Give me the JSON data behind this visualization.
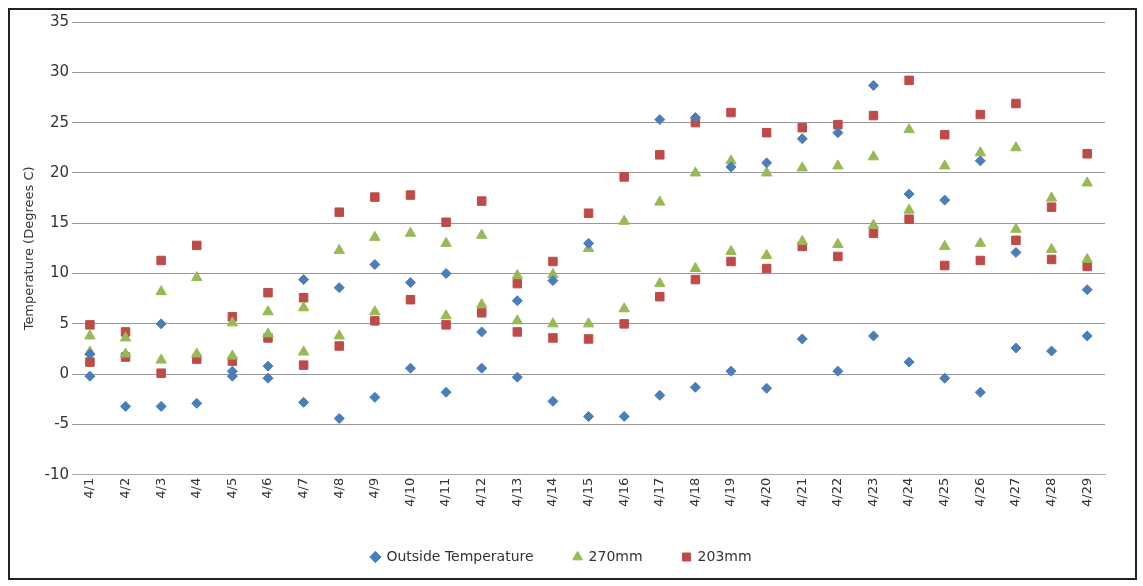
{
  "chart_data": {
    "type": "scatter",
    "ylabel": "Temperature (Degrees C)",
    "categories": [
      "4/1",
      "4/2",
      "4/3",
      "4/4",
      "4/5",
      "4/6",
      "4/7",
      "4/8",
      "4/9",
      "4/10",
      "4/11",
      "4/12",
      "4/13",
      "4/14",
      "4/15",
      "4/16",
      "4/17",
      "4/18",
      "4/19",
      "4/20",
      "4/21",
      "4/22",
      "4/23",
      "4/24",
      "4/25",
      "4/26",
      "4/27",
      "4/28",
      "4/29"
    ],
    "ylim": [
      -10,
      35
    ],
    "yticks": [
      -10,
      -5,
      0,
      5,
      10,
      15,
      20,
      25,
      30,
      35
    ],
    "grid": "y",
    "legend": "bottom",
    "series": [
      {
        "name": "Outside Temperature",
        "color": "#4a7ebb",
        "marker": "diamond",
        "x": [
          "4/1",
          "4/1",
          "4/2",
          "4/3",
          "4/3",
          "4/4",
          "4/5",
          "4/5",
          "4/6",
          "4/6",
          "4/7",
          "4/7",
          "4/8",
          "4/8",
          "4/9",
          "4/9",
          "4/10",
          "4/10",
          "4/11",
          "4/11",
          "4/12",
          "4/12",
          "4/13",
          "4/13",
          "4/14",
          "4/14",
          "4/15",
          "4/15",
          "4/16",
          "4/17",
          "4/17",
          "4/18",
          "4/18",
          "4/19",
          "4/19",
          "4/20",
          "4/20",
          "4/21",
          "4/21",
          "4/22",
          "4/22",
          "4/23",
          "4/23",
          "4/24",
          "4/24",
          "4/25",
          "4/25",
          "4/26",
          "4/26",
          "4/27",
          "4/27",
          "4/28",
          "4/29",
          "4/29"
        ],
        "values": [
          2,
          -0.2,
          -3.2,
          5,
          -3.2,
          -2.9,
          0.3,
          -0.2,
          0.8,
          -0.4,
          9.4,
          -2.8,
          8.6,
          -4.4,
          10.9,
          -2.3,
          9.1,
          0.6,
          10,
          -1.8,
          4.2,
          0.6,
          7.3,
          -0.3,
          9.3,
          -2.7,
          13,
          -4.2,
          -4.2,
          25.3,
          -2.1,
          25.5,
          -1.3,
          20.6,
          0.3,
          21,
          -1.4,
          23.4,
          3.5,
          24,
          0.3,
          28.7,
          3.8,
          17.9,
          1.2,
          17.3,
          -0.4,
          21.2,
          -1.8,
          12.1,
          2.6,
          2.3,
          8.4,
          3.8
        ]
      },
      {
        "name": "270mm",
        "color": "#98b954",
        "marker": "triangle",
        "x": [
          "4/1",
          "4/1",
          "4/2",
          "4/2",
          "4/3",
          "4/3",
          "4/4",
          "4/4",
          "4/5",
          "4/5",
          "4/6",
          "4/6",
          "4/7",
          "4/7",
          "4/8",
          "4/8",
          "4/9",
          "4/9",
          "4/10",
          "4/11",
          "4/11",
          "4/12",
          "4/12",
          "4/13",
          "4/13",
          "4/14",
          "4/14",
          "4/15",
          "4/15",
          "4/16",
          "4/16",
          "4/17",
          "4/17",
          "4/18",
          "4/18",
          "4/19",
          "4/19",
          "4/20",
          "4/20",
          "4/21",
          "4/21",
          "4/22",
          "4/22",
          "4/23",
          "4/23",
          "4/24",
          "4/24",
          "4/25",
          "4/25",
          "4/26",
          "4/26",
          "4/27",
          "4/27",
          "4/28",
          "4/28",
          "4/29",
          "4/29"
        ],
        "values": [
          3.8,
          2.2,
          3.6,
          2,
          8.2,
          1.4,
          9.6,
          2,
          5.1,
          1.8,
          6.2,
          4,
          6.6,
          2.2,
          12.3,
          3.8,
          13.6,
          6.2,
          14,
          13,
          5.8,
          13.8,
          6.9,
          9.8,
          5.3,
          9.9,
          5,
          12.5,
          5,
          15.2,
          6.5,
          17.1,
          9,
          20,
          10.5,
          21.2,
          12.2,
          20,
          11.8,
          20.5,
          13.2,
          20.7,
          12.9,
          21.6,
          14.8,
          24.3,
          16.3,
          20.7,
          12.7,
          22,
          13,
          22.5,
          14.4,
          17.5,
          12.4,
          19,
          11.4
        ]
      },
      {
        "name": "203mm",
        "color": "#be4b48",
        "marker": "square",
        "x": [
          "4/1",
          "4/1",
          "4/2",
          "4/2",
          "4/3",
          "4/3",
          "4/4",
          "4/4",
          "4/5",
          "4/5",
          "4/6",
          "4/6",
          "4/7",
          "4/7",
          "4/8",
          "4/8",
          "4/9",
          "4/9",
          "4/10",
          "4/10",
          "4/11",
          "4/11",
          "4/12",
          "4/12",
          "4/13",
          "4/13",
          "4/14",
          "4/14",
          "4/15",
          "4/15",
          "4/16",
          "4/16",
          "4/17",
          "4/17",
          "4/18",
          "4/18",
          "4/19",
          "4/19",
          "4/20",
          "4/20",
          "4/21",
          "4/21",
          "4/22",
          "4/22",
          "4/23",
          "4/23",
          "4/24",
          "4/24",
          "4/25",
          "4/25",
          "4/26",
          "4/26",
          "4/27",
          "4/27",
          "4/28",
          "4/28",
          "4/29",
          "4/29"
        ],
        "values": [
          4.9,
          1.2,
          4.2,
          1.7,
          11.3,
          0.1,
          12.8,
          1.5,
          5.7,
          1.3,
          8.1,
          3.6,
          7.6,
          0.9,
          16.1,
          2.8,
          17.6,
          5.3,
          17.8,
          7.4,
          15.1,
          4.9,
          17.2,
          6.1,
          9,
          4.2,
          11.2,
          3.6,
          16,
          3.5,
          19.6,
          5,
          21.8,
          7.7,
          25,
          9.4,
          26,
          11.2,
          24,
          10.5,
          24.5,
          12.7,
          24.8,
          11.7,
          25.7,
          14,
          29.2,
          15.4,
          23.8,
          10.8,
          25.8,
          11.3,
          26.9,
          13.3,
          16.6,
          11.4,
          21.9,
          10.7
        ]
      }
    ]
  }
}
